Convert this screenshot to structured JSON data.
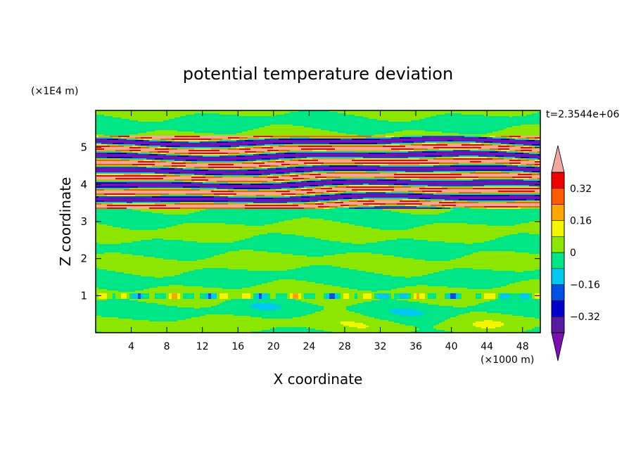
{
  "chart_data": {
    "type": "heatmap",
    "title": "potential temperature deviation",
    "xlabel": "X coordinate",
    "ylabel": "Z coordinate",
    "x_unit": "(×1000 m)",
    "y_unit": "(×1E4 m)",
    "time_label": "t=2.3544e+06",
    "xlim": [
      0,
      50
    ],
    "ylim": [
      0,
      6
    ],
    "x_ticks": [
      4,
      8,
      12,
      16,
      20,
      24,
      28,
      32,
      36,
      40,
      44,
      48
    ],
    "y_ticks": [
      1,
      2,
      3,
      4,
      5
    ],
    "colorbar": {
      "levels": [
        -0.48,
        -0.4,
        -0.32,
        -0.24,
        -0.16,
        -0.08,
        0,
        0.08,
        0.16,
        0.24,
        0.32,
        0.4
      ],
      "colors": [
        "#7b0fb0",
        "#5a1aa0",
        "#0000c8",
        "#0050e6",
        "#00c8f0",
        "#00e687",
        "#8ce600",
        "#f5f500",
        "#ffa500",
        "#ff5a00",
        "#f00000",
        "#f0a8a0"
      ],
      "tick_values": [
        0.32,
        0.16,
        0,
        -0.16,
        -0.32
      ],
      "tick_labels": [
        "0.32",
        "0.16",
        "0",
        "−0.16",
        "−0.32"
      ],
      "extend": "both"
    },
    "field_description_bands": [
      {
        "z_range": [
          0,
          0.95
        ],
        "dominant": "green/light-green mix"
      },
      {
        "z_range": [
          0.95,
          1.05
        ],
        "dominant": "thin mixed line"
      },
      {
        "z_range": [
          1.05,
          3.4
        ],
        "dominant": "green/light-green layered"
      },
      {
        "z_range": [
          3.4,
          5.3
        ],
        "dominant": "strong alternating pink/purple/red/blue layers"
      },
      {
        "z_range": [
          5.3,
          6
        ],
        "dominant": "green/light-green"
      }
    ]
  }
}
